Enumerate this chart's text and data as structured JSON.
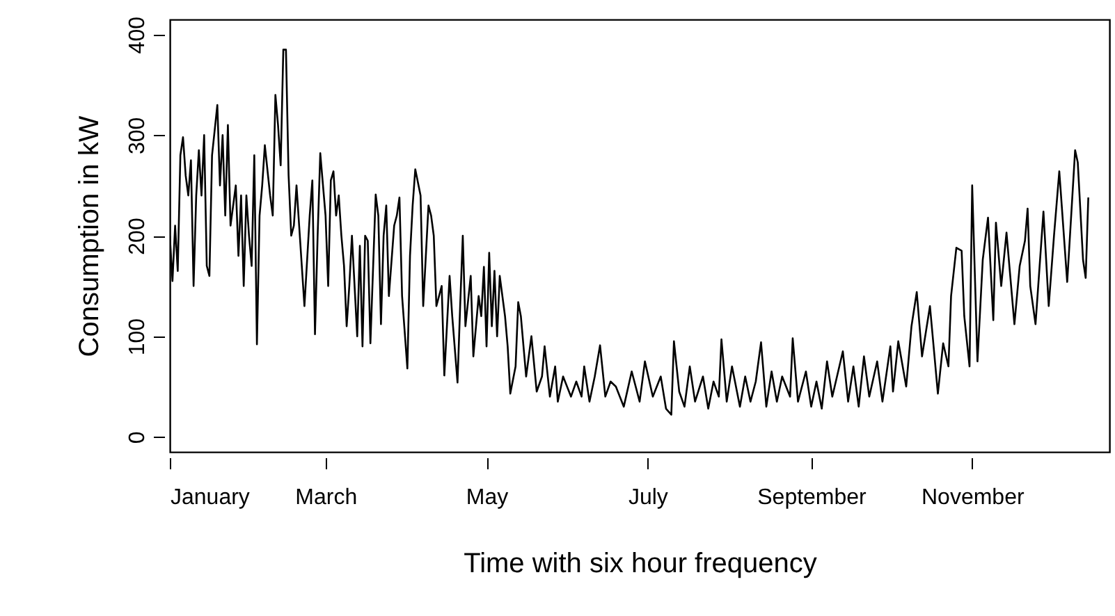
{
  "chart_data": {
    "type": "line",
    "xlabel": "Time with six hour frequency",
    "ylabel": "Consumption in kW",
    "xlim": [
      "--01-01",
      "--12-23"
    ],
    "ylim": [
      -15,
      415
    ],
    "xticks": [
      {
        "value": "--01-01",
        "label": "January"
      },
      {
        "value": "--03-01",
        "label": "March"
      },
      {
        "value": "--05-01",
        "label": "May"
      },
      {
        "value": "--07-01",
        "label": "July"
      },
      {
        "value": "--09-01",
        "label": "September"
      },
      {
        "value": "--11-01",
        "label": "November"
      }
    ],
    "yticks": [
      0,
      100,
      200,
      300,
      400
    ],
    "x": [
      "--01-01",
      "--01-02",
      "--01-03",
      "--01-04",
      "--01-05",
      "--01-06",
      "--01-07",
      "--01-08",
      "--01-09",
      "--01-10",
      "--01-11",
      "--01-12",
      "--01-13",
      "--01-14",
      "--01-15",
      "--01-16",
      "--01-17",
      "--01-19",
      "--01-20",
      "--01-21",
      "--01-22",
      "--01-23",
      "--01-24",
      "--01-26",
      "--01-27",
      "--01-28",
      "--01-29",
      "--01-30",
      "--01-31",
      "--02-01",
      "--02-02",
      "--02-03",
      "--02-04",
      "--02-05",
      "--02-06",
      "--02-08",
      "--02-09",
      "--02-10",
      "--02-11",
      "--02-12",
      "--02-13",
      "--02-14",
      "--02-15",
      "--02-16",
      "--02-17",
      "--02-18",
      "--02-19",
      "--02-21",
      "--02-23",
      "--02-24",
      "--02-25",
      "--02-26",
      "--02-27",
      "--03-01",
      "--03-02",
      "--03-03",
      "--03-04",
      "--03-05",
      "--03-06",
      "--03-07",
      "--03-08",
      "--03-09",
      "--03-10",
      "--03-11",
      "--03-13",
      "--03-14",
      "--03-15",
      "--03-16",
      "--03-17",
      "--03-18",
      "--03-20",
      "--03-21",
      "--03-22",
      "--03-23",
      "--03-24",
      "--03-25",
      "--03-27",
      "--03-28",
      "--03-29",
      "--03-30",
      "--04-01",
      "--04-02",
      "--04-03",
      "--04-04",
      "--04-06",
      "--04-07",
      "--04-09",
      "--04-10",
      "--04-11",
      "--04-12",
      "--04-14",
      "--04-15",
      "--04-17",
      "--04-18",
      "--04-20",
      "--04-21",
      "--04-22",
      "--04-23",
      "--04-25",
      "--04-26",
      "--04-28",
      "--04-29",
      "--04-30",
      "--05-01",
      "--05-02",
      "--05-03",
      "--05-04",
      "--05-05",
      "--05-06",
      "--05-08",
      "--05-09",
      "--05-10",
      "--05-12",
      "--05-13",
      "--05-14",
      "--05-16",
      "--05-17",
      "--05-18",
      "--05-20",
      "--05-22",
      "--05-23",
      "--05-25",
      "--05-27",
      "--05-28",
      "--05-30",
      "--06-02",
      "--06-04",
      "--06-06",
      "--06-07",
      "--06-09",
      "--06-11",
      "--06-13",
      "--06-15",
      "--06-17",
      "--06-19",
      "--06-22",
      "--06-25",
      "--06-28",
      "--06-30",
      "--07-03",
      "--07-06",
      "--07-08",
      "--07-10",
      "--07-11",
      "--07-13",
      "--07-15",
      "--07-17",
      "--07-19",
      "--07-22",
      "--07-24",
      "--07-26",
      "--07-28",
      "--07-29",
      "--07-31",
      "--08-02",
      "--08-05",
      "--08-07",
      "--08-09",
      "--08-11",
      "--08-13",
      "--08-15",
      "--08-17",
      "--08-19",
      "--08-21",
      "--08-24",
      "--08-25",
      "--08-27",
      "--08-30",
      "--09-01",
      "--09-03",
      "--09-05",
      "--09-07",
      "--09-09",
      "--09-13",
      "--09-15",
      "--09-17",
      "--09-19",
      "--09-21",
      "--09-23",
      "--09-26",
      "--09-28",
      "--10-01",
      "--10-02",
      "--10-04",
      "--10-07",
      "--10-09",
      "--10-11",
      "--10-13",
      "--10-16",
      "--10-19",
      "--10-21",
      "--10-23",
      "--10-24",
      "--10-26",
      "--10-28",
      "--10-29",
      "--10-31",
      "--11-01",
      "--11-03",
      "--11-05",
      "--11-07",
      "--11-09",
      "--11-10",
      "--11-12",
      "--11-14",
      "--11-17",
      "--11-19",
      "--11-21",
      "--11-22",
      "--11-23",
      "--11-25",
      "--11-28",
      "--11-30",
      "--12-02",
      "--12-04",
      "--12-07",
      "--12-10",
      "--12-11",
      "--12-13",
      "--12-14",
      "--12-15"
    ],
    "series": [
      {
        "color": "#000000",
        "values": [
          200,
          155,
          210,
          165,
          280,
          298,
          260,
          240,
          275,
          150,
          240,
          285,
          240,
          300,
          170,
          160,
          280,
          330,
          250,
          300,
          220,
          310,
          210,
          250,
          180,
          240,
          150,
          240,
          200,
          170,
          280,
          92,
          220,
          250,
          290,
          240,
          220,
          340,
          310,
          270,
          385,
          385,
          260,
          200,
          210,
          250,
          210,
          130,
          220,
          255,
          102,
          200,
          282,
          220,
          150,
          255,
          264,
          220,
          240,
          200,
          170,
          110,
          150,
          200,
          100,
          190,
          90,
          200,
          195,
          93,
          241,
          220,
          112,
          200,
          230,
          140,
          210,
          220,
          238,
          140,
          68,
          180,
          230,
          266,
          240,
          130,
          230,
          220,
          200,
          130,
          150,
          61,
          160,
          120,
          54,
          130,
          200,
          110,
          160,
          80,
          140,
          120,
          169,
          90,
          183,
          110,
          165,
          100,
          160,
          120,
          90,
          43,
          70,
          134,
          120,
          60,
          80,
          100,
          45,
          60,
          90,
          40,
          70,
          35,
          60,
          40,
          55,
          40,
          70,
          35,
          60,
          91,
          40,
          55,
          50,
          30,
          65,
          35,
          75,
          40,
          60,
          28,
          22,
          95,
          45,
          30,
          70,
          35,
          60,
          28,
          55,
          40,
          97,
          35,
          70,
          30,
          60,
          35,
          55,
          94,
          30,
          65,
          35,
          60,
          40,
          98,
          35,
          65,
          30,
          55,
          28,
          75,
          40,
          85,
          35,
          70,
          30,
          80,
          40,
          75,
          35,
          90,
          45,
          95,
          50,
          110,
          144,
          80,
          130,
          43,
          93,
          70,
          140,
          188,
          185,
          120,
          70,
          250,
          75,
          176,
          218,
          116,
          213,
          150,
          203,
          112,
          170,
          195,
          227,
          150,
          112,
          224,
          130,
          200,
          264,
          154,
          285,
          273,
          176,
          158,
          238
        ]
      }
    ]
  }
}
